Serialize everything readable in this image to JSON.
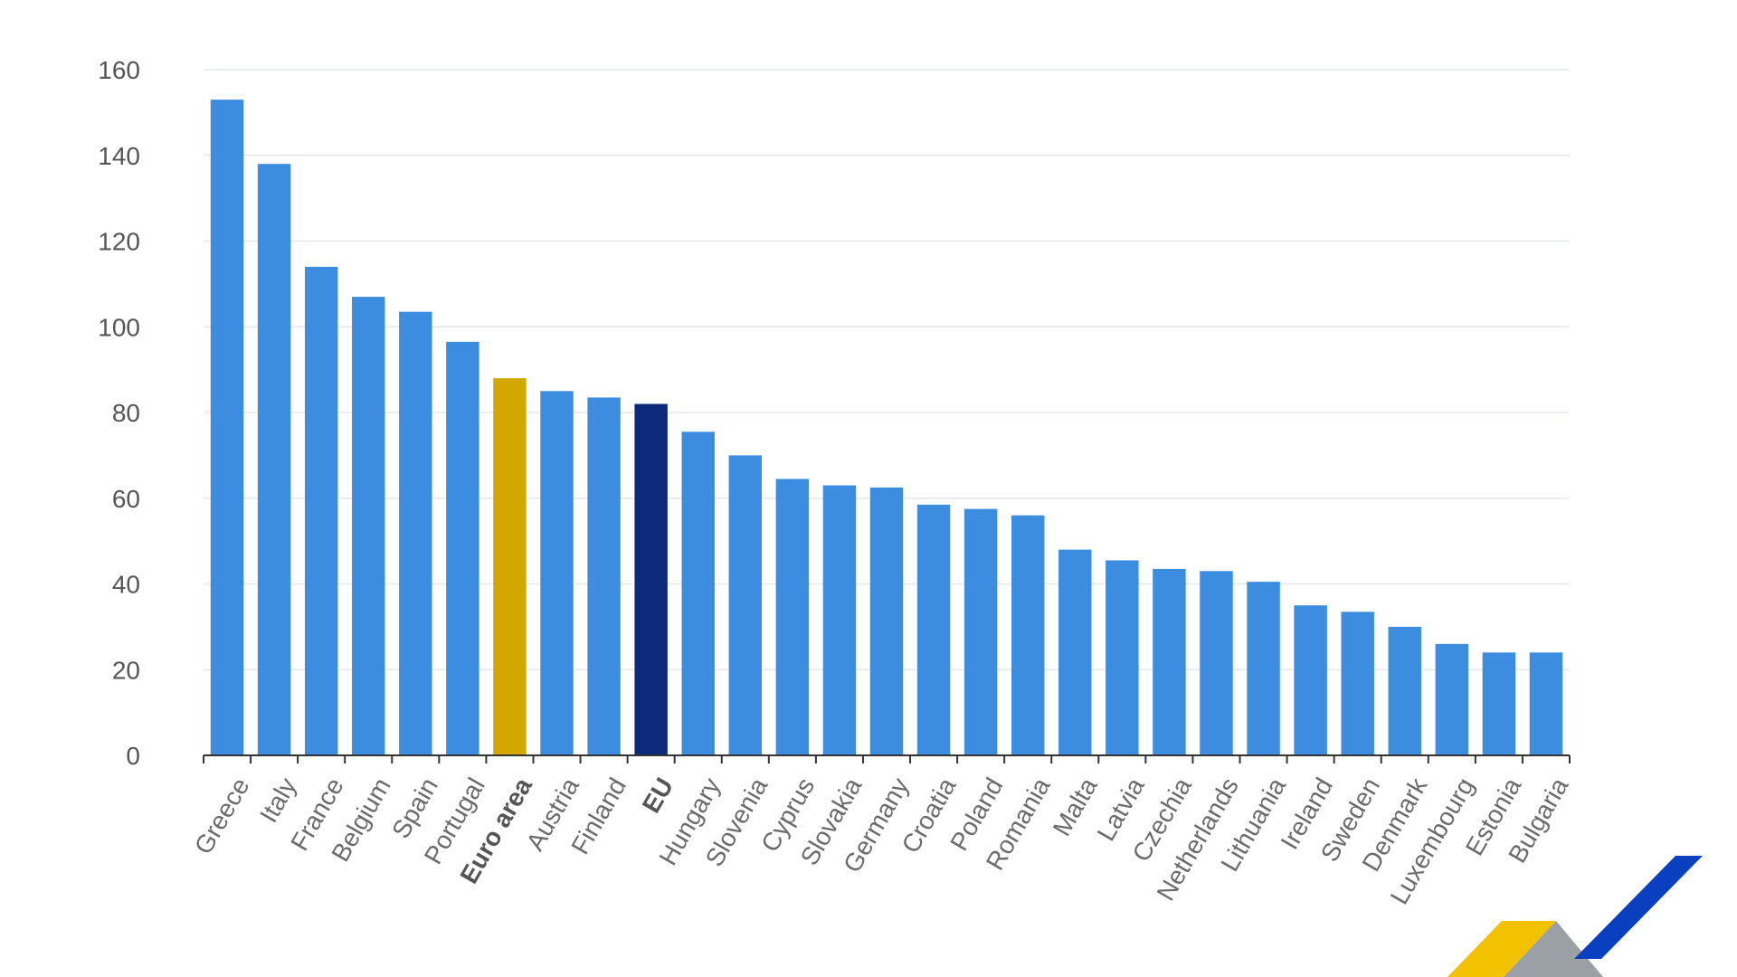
{
  "chart_data": {
    "type": "bar",
    "title": "",
    "xlabel": "",
    "ylabel": "",
    "ylim": [
      0,
      160
    ],
    "y_ticks": [
      0,
      20,
      40,
      60,
      80,
      100,
      120,
      140,
      160
    ],
    "grid": true,
    "categories": [
      "Greece",
      "Italy",
      "France",
      "Belgium",
      "Spain",
      "Portugal",
      "Euro area",
      "Austria",
      "Finland",
      "EU",
      "Hungary",
      "Slovenia",
      "Cyprus",
      "Slovakia",
      "Germany",
      "Croatia",
      "Poland",
      "Romania",
      "Malta",
      "Latvia",
      "Czechia",
      "Netherlands",
      "Lithuania",
      "Ireland",
      "Sweden",
      "Denmark",
      "Luxembourg",
      "Estonia",
      "Bulgaria"
    ],
    "values": [
      153,
      138,
      114,
      107,
      103.5,
      96.5,
      88,
      85,
      83.5,
      82,
      75.5,
      70,
      64.5,
      63,
      62.5,
      58.5,
      57.5,
      56,
      48,
      45.5,
      43.5,
      43,
      40.5,
      35,
      33.5,
      30,
      26,
      24,
      24
    ],
    "bold_categories": [
      "Euro area",
      "EU"
    ],
    "colors": {
      "default": "#3c8ce0",
      "Euro area": "#d4a600",
      "EU": "#0d2a7a"
    }
  },
  "logo": {
    "colors": [
      "#f2c200",
      "#9aa0a6",
      "#0a3fbf"
    ]
  }
}
